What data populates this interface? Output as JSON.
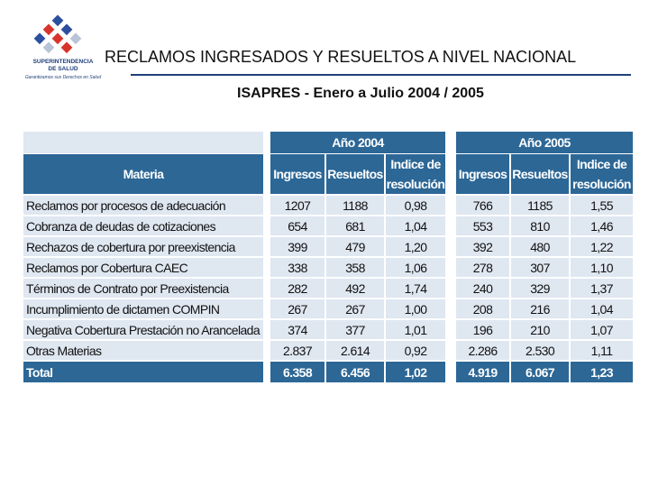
{
  "header": {
    "logo_line1": "SUPERINTENDENCIA",
    "logo_line2": "DE SALUD",
    "logo_tagline": "Garantizamos sus Derechos en Salud",
    "title": "RECLAMOS INGRESADOS Y RESUELTOS A NIVEL NACIONAL",
    "subtitle": "ISAPRES -  Enero a Julio 2004 / 2005"
  },
  "table": {
    "row_header": "Materia",
    "groups": [
      {
        "label": "Año 2004",
        "columns": [
          "Ingresos",
          "Resueltos",
          "Indice de resolución"
        ]
      },
      {
        "label": "Año 2005",
        "columns": [
          "Ingresos",
          "Resueltos",
          "Indice de resolución"
        ]
      }
    ],
    "rows": [
      [
        "Reclamos por procesos de adecuación",
        "1207",
        "1188",
        "0,98",
        "766",
        "1185",
        "1,55"
      ],
      [
        "Cobranza de deudas de cotizaciones",
        "654",
        "681",
        "1,04",
        "553",
        "810",
        "1,46"
      ],
      [
        "Rechazos de cobertura por preexistencia",
        "399",
        "479",
        "1,20",
        "392",
        "480",
        "1,22"
      ],
      [
        "Reclamos por Cobertura CAEC",
        "338",
        "358",
        "1,06",
        "278",
        "307",
        "1,10"
      ],
      [
        "Términos de Contrato por Preexistencia",
        "282",
        "492",
        "1,74",
        "240",
        "329",
        "1,37"
      ],
      [
        "Incumplimiento de dictamen COMPIN",
        "267",
        "267",
        "1,00",
        "208",
        "216",
        "1,04"
      ],
      [
        "Negativa Cobertura Prestación no Arancelada",
        "374",
        "377",
        "1,01",
        "196",
        "210",
        "1,07"
      ],
      [
        "Otras Materias",
        "2.837",
        "2.614",
        "0,92",
        "2.286",
        "2.530",
        "1,11"
      ]
    ],
    "total": [
      "Total",
      "6.358",
      "6.456",
      "1,02",
      "4.919",
      "6.067",
      "1,23"
    ]
  }
}
